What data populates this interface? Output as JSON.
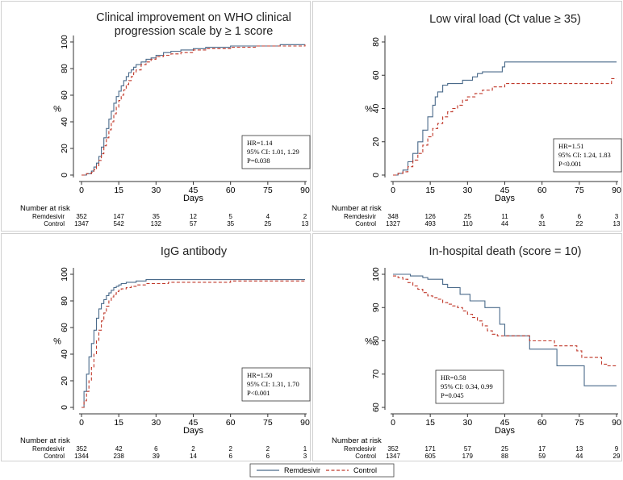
{
  "legend": {
    "entries": [
      {
        "label": "Remdesivir",
        "style": "solid",
        "color": "#4a6a8a"
      },
      {
        "label": "Control",
        "style": "dashed",
        "color": "#c0392b"
      }
    ]
  },
  "colors": {
    "remdesivir": "#4a6a8a",
    "control": "#c0392b",
    "panel_bg": "#ffffff",
    "outer_bg": "#ffffff"
  },
  "chart_data": [
    {
      "type": "line",
      "title": "Clinical improvement on WHO clinical progression scale by ≥ 1 score",
      "title_lines": [
        "Clinical improvement on WHO clinical",
        "progression scale by ≥ 1 score"
      ],
      "xlabel": "Days",
      "ylabel": "%",
      "xlim": [
        0,
        90
      ],
      "ylim": [
        0,
        100
      ],
      "xticks": [
        0,
        15,
        30,
        45,
        60,
        75,
        90
      ],
      "yticks": [
        0,
        20,
        40,
        60,
        80,
        100
      ],
      "stats": [
        "HR=1.14",
        "95% CI: 1.01, 1.29",
        "P=0.038"
      ],
      "series": [
        {
          "name": "Remdesivir",
          "x": [
            0,
            2,
            4,
            5,
            6,
            7,
            8,
            9,
            10,
            11,
            12,
            13,
            14,
            15,
            16,
            17,
            18,
            19,
            20,
            21,
            22,
            24,
            26,
            28,
            30,
            33,
            36,
            40,
            45,
            50,
            60,
            70,
            80,
            90
          ],
          "y": [
            0,
            1,
            3,
            6,
            9,
            14,
            21,
            28,
            35,
            42,
            48,
            54,
            59,
            63,
            67,
            71,
            74,
            77,
            79,
            81,
            83,
            85,
            87,
            88,
            90,
            92,
            93,
            94,
            95,
            96,
            97,
            97,
            98,
            98
          ]
        },
        {
          "name": "Control",
          "x": [
            0,
            2,
            4,
            5,
            6,
            7,
            8,
            9,
            10,
            11,
            12,
            13,
            14,
            15,
            16,
            17,
            18,
            19,
            20,
            21,
            22,
            24,
            26,
            28,
            30,
            33,
            36,
            40,
            45,
            50,
            60,
            70,
            80,
            90
          ],
          "y": [
            0,
            1,
            2,
            4,
            7,
            11,
            16,
            22,
            28,
            34,
            40,
            46,
            51,
            56,
            60,
            64,
            68,
            71,
            74,
            77,
            79,
            83,
            85,
            87,
            89,
            90,
            91,
            92,
            94,
            95,
            96,
            97,
            97,
            98
          ]
        }
      ],
      "at_risk": {
        "title": "Number at risk",
        "rows": [
          {
            "label": "Remdesivir",
            "values": [
              352,
              147,
              35,
              12,
              5,
              4,
              2
            ]
          },
          {
            "label": "Control",
            "values": [
              1347,
              542,
              132,
              57,
              35,
              25,
              13
            ]
          }
        ]
      }
    },
    {
      "type": "line",
      "title": "Low viral load (Ct value ≥ 35)",
      "title_lines": [
        "Low viral load (Ct value ≥ 35)"
      ],
      "xlabel": "Days",
      "ylabel": "%",
      "xlim": [
        0,
        90
      ],
      "ylim": [
        0,
        80
      ],
      "xticks": [
        0,
        15,
        30,
        45,
        60,
        75,
        90
      ],
      "yticks": [
        0,
        20,
        40,
        60,
        80
      ],
      "stats": [
        "HR=1.51",
        "95% CI: 1.24, 1.83",
        "P<0.001"
      ],
      "series": [
        {
          "name": "Remdesivir",
          "x": [
            0,
            2,
            4,
            6,
            8,
            10,
            12,
            14,
            16,
            17,
            18,
            20,
            22,
            24,
            26,
            28,
            30,
            32,
            34,
            36,
            40,
            44,
            45,
            50,
            60,
            70,
            80,
            90
          ],
          "y": [
            0,
            1,
            3,
            8,
            13,
            20,
            27,
            35,
            42,
            47,
            50,
            54,
            55,
            55,
            55,
            57,
            57,
            59,
            61,
            62,
            62,
            65,
            68,
            68,
            68,
            68,
            68,
            68
          ]
        },
        {
          "name": "Control",
          "x": [
            0,
            2,
            4,
            6,
            8,
            10,
            12,
            14,
            16,
            18,
            20,
            22,
            24,
            26,
            28,
            30,
            33,
            36,
            40,
            45,
            50,
            60,
            70,
            80,
            85,
            88,
            90
          ],
          "y": [
            0,
            1,
            2,
            5,
            9,
            13,
            18,
            23,
            28,
            31,
            35,
            38,
            40,
            42,
            45,
            47,
            49,
            51,
            53,
            55,
            55,
            55,
            55,
            55,
            55,
            58,
            58
          ]
        }
      ],
      "at_risk": {
        "title": "Number at risk",
        "rows": [
          {
            "label": "Remdesivir",
            "values": [
              348,
              126,
              25,
              11,
              6,
              6,
              3
            ]
          },
          {
            "label": "Control",
            "values": [
              1327,
              493,
              110,
              44,
              31,
              22,
              13
            ]
          }
        ]
      }
    },
    {
      "type": "line",
      "title": "IgG antibody",
      "title_lines": [
        "IgG antibody"
      ],
      "xlabel": "Days",
      "ylabel": "%",
      "xlim": [
        0,
        90
      ],
      "ylim": [
        0,
        100
      ],
      "xticks": [
        0,
        15,
        30,
        45,
        60,
        75,
        90
      ],
      "yticks": [
        0,
        20,
        40,
        60,
        80,
        100
      ],
      "stats": [
        "HR=1.50",
        "95% CI: 1.31, 1.70",
        "P<0.001"
      ],
      "series": [
        {
          "name": "Remdesivir",
          "x": [
            0,
            1,
            2,
            3,
            4,
            5,
            6,
            7,
            8,
            9,
            10,
            11,
            12,
            13,
            14,
            15,
            16,
            18,
            20,
            22,
            24,
            26,
            28,
            30,
            35,
            40,
            50,
            60,
            70,
            80,
            90
          ],
          "y": [
            0,
            12,
            25,
            38,
            48,
            58,
            67,
            74,
            78,
            81,
            84,
            86,
            88,
            90,
            91,
            92,
            93,
            94,
            94,
            95,
            95,
            96,
            96,
            96,
            96,
            96,
            96,
            96,
            96,
            96,
            96
          ]
        },
        {
          "name": "Control",
          "x": [
            0,
            1,
            2,
            3,
            4,
            5,
            6,
            7,
            8,
            9,
            10,
            11,
            12,
            13,
            14,
            15,
            16,
            18,
            20,
            22,
            24,
            26,
            28,
            30,
            35,
            40,
            50,
            60,
            70,
            80,
            90
          ],
          "y": [
            0,
            5,
            12,
            20,
            30,
            40,
            50,
            58,
            65,
            71,
            76,
            80,
            83,
            85,
            87,
            88,
            89,
            90,
            91,
            92,
            92,
            93,
            93,
            93,
            94,
            94,
            94,
            95,
            95,
            95,
            95
          ]
        }
      ],
      "at_risk": {
        "title": "Number at risk",
        "rows": [
          {
            "label": "Remdesivir",
            "values": [
              352,
              42,
              6,
              2,
              2,
              2,
              1
            ]
          },
          {
            "label": "Control",
            "values": [
              1344,
              238,
              39,
              14,
              6,
              6,
              3
            ]
          }
        ]
      }
    },
    {
      "type": "line",
      "title": "In-hospital death (score = 10)",
      "title_lines": [
        "In-hospital death (score = 10)"
      ],
      "xlabel": "Days",
      "ylabel": "%",
      "xlim": [
        0,
        90
      ],
      "ylim": [
        60,
        100
      ],
      "xticks": [
        0,
        15,
        30,
        45,
        60,
        75,
        90
      ],
      "yticks": [
        60,
        70,
        80,
        90,
        100
      ],
      "stats": [
        "HR=0.58",
        "95% CI: 0.34, 0.99",
        "P=0.045"
      ],
      "series": [
        {
          "name": "Remdesivir",
          "x": [
            0,
            5,
            7,
            10,
            12,
            14,
            18,
            20,
            22,
            24,
            27,
            29,
            31,
            34,
            37,
            40,
            43,
            45,
            50,
            55,
            60,
            63,
            66,
            70,
            74,
            77,
            80,
            85,
            90
          ],
          "y": [
            100,
            100,
            99.5,
            99.5,
            99,
            98.5,
            98.5,
            97,
            96,
            96,
            94,
            94,
            92,
            92,
            90,
            90,
            85,
            81.5,
            81.5,
            77.5,
            77.5,
            77.5,
            72.5,
            72.5,
            72.5,
            66.5,
            66.5,
            66.5,
            66.5
          ]
        },
        {
          "name": "Control",
          "x": [
            0,
            2,
            4,
            6,
            8,
            10,
            12,
            14,
            16,
            18,
            20,
            22,
            24,
            26,
            28,
            30,
            32,
            34,
            36,
            38,
            40,
            42,
            45,
            50,
            55,
            60,
            65,
            70,
            74,
            76,
            80,
            84,
            86,
            90
          ],
          "y": [
            99.5,
            99,
            98.5,
            97.5,
            96.5,
            95.5,
            94.5,
            93.5,
            93,
            92.5,
            91.5,
            91,
            90.5,
            90,
            89,
            88,
            87,
            86,
            84.5,
            83,
            82,
            81.5,
            81.5,
            81.5,
            80,
            80,
            78.5,
            78.5,
            77,
            75,
            75,
            73,
            72.5,
            72.5
          ]
        }
      ],
      "at_risk": {
        "title": "Number at risk",
        "rows": [
          {
            "label": "Remdesivir",
            "values": [
              352,
              171,
              57,
              25,
              17,
              13,
              9
            ]
          },
          {
            "label": "Control",
            "values": [
              1347,
              605,
              179,
              88,
              59,
              44,
              29
            ]
          }
        ]
      }
    }
  ]
}
